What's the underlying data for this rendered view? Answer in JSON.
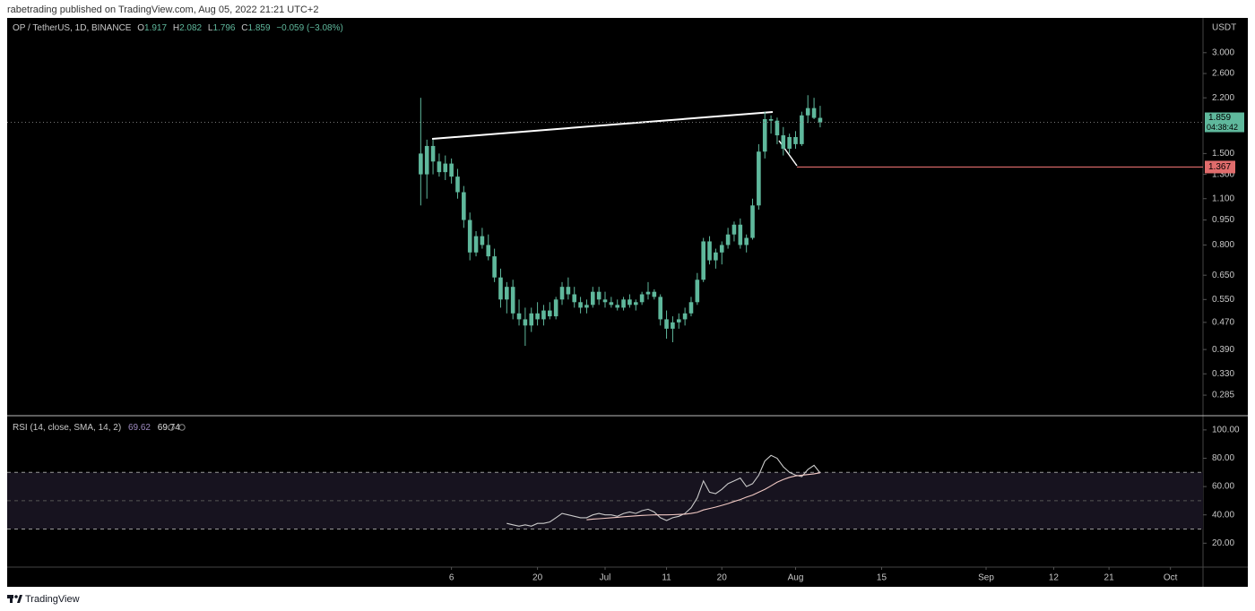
{
  "header": {
    "text": "rabetrading published on TradingView.com, Aug 05, 2022 21:21 UTC+2"
  },
  "footer": {
    "logo_text": "TradingView"
  },
  "chart_data": [
    {
      "type": "candlestick",
      "title": "OP / TetherUS, 1D, BINANCE",
      "ohlc_prefixes": [
        "O",
        "H",
        "L",
        "C"
      ],
      "change_label": "−0.059 (−3.08%)",
      "unit": "USDT",
      "countdown": "04:38:42",
      "color": "#5fb89c",
      "log_scale": true,
      "grid": false,
      "open": [
        1.5,
        1.3,
        1.58,
        1.42,
        1.32,
        1.4,
        1.28,
        1.15,
        0.95,
        0.76,
        0.85,
        0.8,
        0.74,
        0.64,
        0.55,
        0.6,
        0.5,
        0.48,
        0.46,
        0.5,
        0.48,
        0.51,
        0.49,
        0.55,
        0.6,
        0.57,
        0.54,
        0.52,
        0.53,
        0.58,
        0.55,
        0.54,
        0.53,
        0.52,
        0.55,
        0.53,
        0.54,
        0.57,
        0.58,
        0.56,
        0.48,
        0.45,
        0.47,
        0.48,
        0.5,
        0.54,
        0.63,
        0.82,
        0.72,
        0.76,
        0.8,
        0.86,
        0.92,
        0.8,
        0.84,
        1.05,
        1.52,
        1.9,
        1.88,
        1.7,
        1.55,
        1.68,
        1.6,
        1.95,
        2.05,
        1.917
      ],
      "high": [
        2.2,
        1.65,
        1.65,
        1.5,
        1.48,
        1.45,
        1.35,
        1.2,
        1.0,
        0.88,
        0.9,
        0.86,
        0.78,
        0.68,
        0.62,
        0.63,
        0.55,
        0.52,
        0.52,
        0.54,
        0.53,
        0.54,
        0.56,
        0.62,
        0.64,
        0.6,
        0.56,
        0.55,
        0.6,
        0.6,
        0.58,
        0.56,
        0.55,
        0.56,
        0.57,
        0.55,
        0.58,
        0.62,
        0.59,
        0.57,
        0.51,
        0.49,
        0.5,
        0.52,
        0.56,
        0.66,
        0.84,
        0.85,
        0.78,
        0.82,
        0.9,
        0.94,
        0.96,
        0.86,
        1.1,
        1.6,
        2.0,
        1.95,
        1.92,
        1.8,
        1.72,
        1.75,
        2.0,
        2.24,
        2.2,
        2.082
      ],
      "low": [
        1.05,
        1.1,
        1.3,
        1.28,
        1.25,
        1.22,
        1.1,
        0.9,
        0.72,
        0.74,
        0.78,
        0.72,
        0.62,
        0.52,
        0.5,
        0.48,
        0.46,
        0.4,
        0.44,
        0.46,
        0.46,
        0.48,
        0.48,
        0.53,
        0.55,
        0.52,
        0.5,
        0.5,
        0.52,
        0.53,
        0.52,
        0.52,
        0.51,
        0.51,
        0.52,
        0.51,
        0.53,
        0.55,
        0.55,
        0.46,
        0.42,
        0.41,
        0.45,
        0.46,
        0.49,
        0.53,
        0.62,
        0.7,
        0.68,
        0.7,
        0.78,
        0.82,
        0.78,
        0.76,
        0.83,
        1.02,
        1.45,
        1.72,
        1.6,
        1.48,
        1.5,
        1.55,
        1.58,
        1.85,
        1.9,
        1.796
      ],
      "close": [
        1.3,
        1.58,
        1.42,
        1.32,
        1.4,
        1.28,
        1.15,
        0.95,
        0.76,
        0.85,
        0.8,
        0.74,
        0.64,
        0.55,
        0.6,
        0.5,
        0.48,
        0.46,
        0.5,
        0.48,
        0.51,
        0.49,
        0.55,
        0.6,
        0.57,
        0.54,
        0.52,
        0.53,
        0.58,
        0.55,
        0.54,
        0.53,
        0.52,
        0.55,
        0.53,
        0.54,
        0.57,
        0.58,
        0.56,
        0.48,
        0.45,
        0.47,
        0.48,
        0.5,
        0.54,
        0.63,
        0.82,
        0.72,
        0.76,
        0.8,
        0.86,
        0.92,
        0.8,
        0.84,
        1.05,
        1.52,
        1.9,
        1.88,
        1.7,
        1.55,
        1.68,
        1.6,
        1.95,
        2.05,
        1.917,
        1.859
      ],
      "horizontal_line": {
        "value": 1.367,
        "color": "#e06c6c"
      },
      "ylim": [
        0.249,
        3.81
      ],
      "yticks": [
        {
          "value": 3,
          "label": "3.000"
        },
        {
          "value": 2.6,
          "label": "2.600"
        },
        {
          "value": 2.2,
          "label": "2.200"
        },
        {
          "value": 1.5,
          "label": "1.500"
        },
        {
          "value": 1.3,
          "label": "1.300"
        },
        {
          "value": 1.1,
          "label": "1.100"
        },
        {
          "value": 0.95,
          "label": "0.950"
        },
        {
          "value": 0.8,
          "label": "0.800"
        },
        {
          "value": 0.65,
          "label": "0.650"
        },
        {
          "value": 0.55,
          "label": "0.550"
        },
        {
          "value": 0.47,
          "label": "0.470"
        },
        {
          "value": 0.39,
          "label": "0.390"
        },
        {
          "value": 0.33,
          "label": "0.330"
        },
        {
          "value": 0.285,
          "label": "0.285"
        }
      ],
      "xlim": [
        -67.3,
        127.3
      ],
      "xticks": [
        {
          "value": 5,
          "label": "6"
        },
        {
          "value": 19,
          "label": "20"
        },
        {
          "value": 30,
          "label": "Jul"
        },
        {
          "value": 40,
          "label": "11"
        },
        {
          "value": 49,
          "label": "20"
        },
        {
          "value": 61,
          "label": "Aug"
        },
        {
          "value": 75,
          "label": "15"
        },
        {
          "value": 92,
          "label": "Sep"
        },
        {
          "value": 103,
          "label": "12"
        },
        {
          "value": 112,
          "label": "21"
        },
        {
          "value": 122,
          "label": "Oct"
        }
      ]
    },
    {
      "type": "line",
      "title": "RSI (14, close, SMA, 14, 2)",
      "series": [
        {
          "color": "#c9c9c9",
          "values": [
            null,
            null,
            null,
            null,
            null,
            null,
            null,
            null,
            null,
            null,
            null,
            null,
            null,
            null,
            34,
            33,
            32,
            33,
            32,
            34,
            34,
            35,
            38,
            41,
            40,
            39,
            38,
            38,
            40,
            41,
            40,
            40,
            39,
            41,
            42,
            41,
            43,
            44,
            42,
            38,
            36,
            38,
            39,
            41,
            45,
            52,
            64,
            56,
            55,
            58,
            62,
            64,
            66,
            60,
            62,
            68,
            78,
            82,
            80,
            74,
            70,
            68,
            67,
            72,
            75,
            69.62
          ]
        },
        {
          "color": "#f2c9c4",
          "values": [
            null,
            null,
            null,
            null,
            null,
            null,
            null,
            null,
            null,
            null,
            null,
            null,
            null,
            null,
            null,
            null,
            null,
            null,
            null,
            null,
            null,
            null,
            null,
            null,
            null,
            null,
            null,
            36.5,
            37,
            37.3,
            37.6,
            38,
            38.3,
            38.7,
            39,
            39.3,
            39.6,
            39.8,
            40,
            40,
            40,
            40.1,
            40.3,
            40.5,
            41,
            41.8,
            43.5,
            44.5,
            45.5,
            46.7,
            48,
            49.5,
            50.8,
            52.5,
            54,
            56,
            58,
            60.5,
            63,
            65,
            66.5,
            67.5,
            68,
            68.5,
            69,
            69.74
          ]
        }
      ],
      "levels": [
        70,
        50,
        30
      ],
      "band_color": "#17131f",
      "ylim": [
        3.75,
        109.4
      ],
      "yticks": [
        {
          "value": 100,
          "label": "100.00"
        },
        {
          "value": 80,
          "label": "80.00"
        },
        {
          "value": 60,
          "label": "60.00"
        },
        {
          "value": 40,
          "label": "40.00"
        },
        {
          "value": 20,
          "label": "20.00"
        }
      ]
    }
  ]
}
